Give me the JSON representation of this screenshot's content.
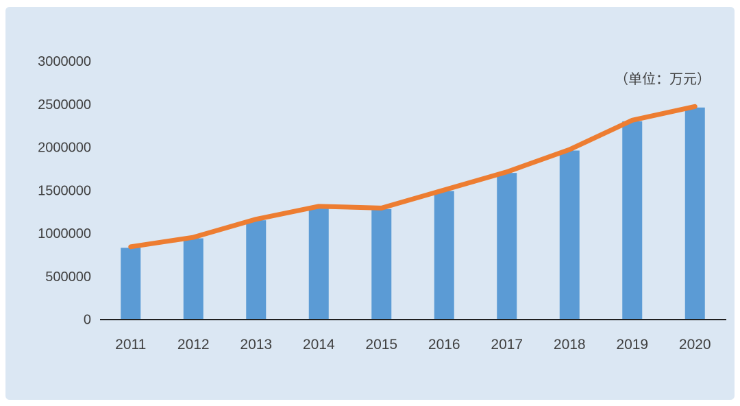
{
  "panel": {
    "background_color": "#dbe7f3",
    "page_background_color": "#ffffff"
  },
  "colors": {
    "bar": "#5b9bd5",
    "line": "#ed7d31",
    "axis": "#1f1f1f",
    "text": "#3f3f3f"
  },
  "chart_data": {
    "type": "bar",
    "title": "",
    "unit_annotation": "（单位：万元）",
    "categories": [
      "2011",
      "2012",
      "2013",
      "2014",
      "2015",
      "2016",
      "2017",
      "2018",
      "2019",
      "2020"
    ],
    "series": [
      {
        "name": "columns",
        "type": "bar",
        "color": "#5b9bd5",
        "values": [
          830000,
          940000,
          1150000,
          1300000,
          1280000,
          1490000,
          1700000,
          1960000,
          2300000,
          2460000
        ]
      },
      {
        "name": "trend-line",
        "type": "line",
        "color": "#ed7d31",
        "values": [
          830000,
          940000,
          1150000,
          1300000,
          1280000,
          1490000,
          1700000,
          1960000,
          2300000,
          2460000
        ]
      }
    ],
    "xlabel": "",
    "ylabel": "",
    "ylim": [
      0,
      3000000
    ],
    "ytick_step": 500000,
    "yticks": [
      "3000000",
      "2500000",
      "2000000",
      "1500000",
      "1000000",
      "500000",
      "0"
    ],
    "grid": false,
    "legend_position": "none"
  }
}
